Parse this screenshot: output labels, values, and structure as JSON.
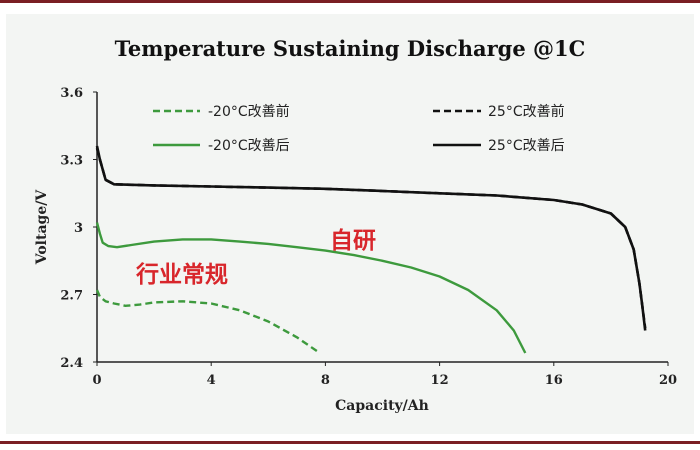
{
  "chart_data": {
    "type": "line",
    "title": "Temperature Sustaining Discharge @1C",
    "xlabel": "Capacity/Ah",
    "ylabel": "Voltage/V",
    "xlim": [
      0,
      20
    ],
    "ylim": [
      2.4,
      3.6
    ],
    "x_ticks": [
      "0",
      "4",
      "8",
      "12",
      "16",
      "20"
    ],
    "x_tick_values": [
      0,
      4,
      8,
      12,
      16,
      20
    ],
    "y_ticks": [
      "3.6",
      "3.3",
      "3",
      "2.7",
      "2.4"
    ],
    "y_tick_values": [
      3.6,
      3.3,
      3.0,
      2.7,
      2.4
    ],
    "grid": false,
    "legend_position": "top",
    "series": [
      {
        "name": "-20°C改善前",
        "color": "#3d9a3d",
        "dash": true,
        "points": [
          [
            0,
            2.72
          ],
          [
            0.1,
            2.69
          ],
          [
            0.3,
            2.67
          ],
          [
            0.6,
            2.66
          ],
          [
            1.0,
            2.65
          ],
          [
            1.5,
            2.655
          ],
          [
            2.0,
            2.665
          ],
          [
            3.0,
            2.67
          ],
          [
            4.0,
            2.66
          ],
          [
            5.0,
            2.63
          ],
          [
            6.0,
            2.58
          ],
          [
            7.0,
            2.51
          ],
          [
            7.8,
            2.44
          ]
        ]
      },
      {
        "name": "-20°C改善后",
        "color": "#3d9a3d",
        "dash": false,
        "points": [
          [
            0,
            3.02
          ],
          [
            0.1,
            2.97
          ],
          [
            0.2,
            2.93
          ],
          [
            0.4,
            2.915
          ],
          [
            0.7,
            2.91
          ],
          [
            1.2,
            2.92
          ],
          [
            2.0,
            2.935
          ],
          [
            3.0,
            2.945
          ],
          [
            4.0,
            2.945
          ],
          [
            5.0,
            2.935
          ],
          [
            6.0,
            2.925
          ],
          [
            7.0,
            2.91
          ],
          [
            8.0,
            2.895
          ],
          [
            9.0,
            2.875
          ],
          [
            10.0,
            2.85
          ],
          [
            11.0,
            2.82
          ],
          [
            12.0,
            2.78
          ],
          [
            13.0,
            2.72
          ],
          [
            14.0,
            2.63
          ],
          [
            14.6,
            2.54
          ],
          [
            15.0,
            2.44
          ]
        ]
      },
      {
        "name": "25°C改善前",
        "color": "#111111",
        "dash": true,
        "points": [
          [
            0,
            3.35
          ],
          [
            0.1,
            3.3
          ],
          [
            0.3,
            3.21
          ],
          [
            0.6,
            3.19
          ],
          [
            2,
            3.185
          ],
          [
            4,
            3.18
          ],
          [
            6,
            3.175
          ],
          [
            8,
            3.17
          ],
          [
            10,
            3.16
          ],
          [
            12,
            3.15
          ],
          [
            14,
            3.14
          ],
          [
            16,
            3.12
          ],
          [
            17,
            3.1
          ],
          [
            18,
            3.06
          ],
          [
            18.5,
            3.0
          ],
          [
            18.8,
            2.9
          ],
          [
            19.0,
            2.75
          ],
          [
            19.1,
            2.65
          ],
          [
            19.2,
            2.55
          ]
        ]
      },
      {
        "name": "25°C改善后",
        "color": "#111111",
        "dash": false,
        "points": [
          [
            0,
            3.36
          ],
          [
            0.1,
            3.3
          ],
          [
            0.3,
            3.21
          ],
          [
            0.6,
            3.19
          ],
          [
            2,
            3.185
          ],
          [
            4,
            3.18
          ],
          [
            6,
            3.175
          ],
          [
            8,
            3.17
          ],
          [
            10,
            3.16
          ],
          [
            12,
            3.15
          ],
          [
            14,
            3.14
          ],
          [
            16,
            3.12
          ],
          [
            17,
            3.1
          ],
          [
            18,
            3.06
          ],
          [
            18.5,
            3.0
          ],
          [
            18.8,
            2.9
          ],
          [
            19.0,
            2.75
          ],
          [
            19.1,
            2.65
          ],
          [
            19.2,
            2.54
          ]
        ]
      }
    ],
    "annotations": [
      {
        "text": "自研",
        "color": "#d8262b"
      },
      {
        "text": "行业常规",
        "color": "#d8262b"
      }
    ]
  }
}
